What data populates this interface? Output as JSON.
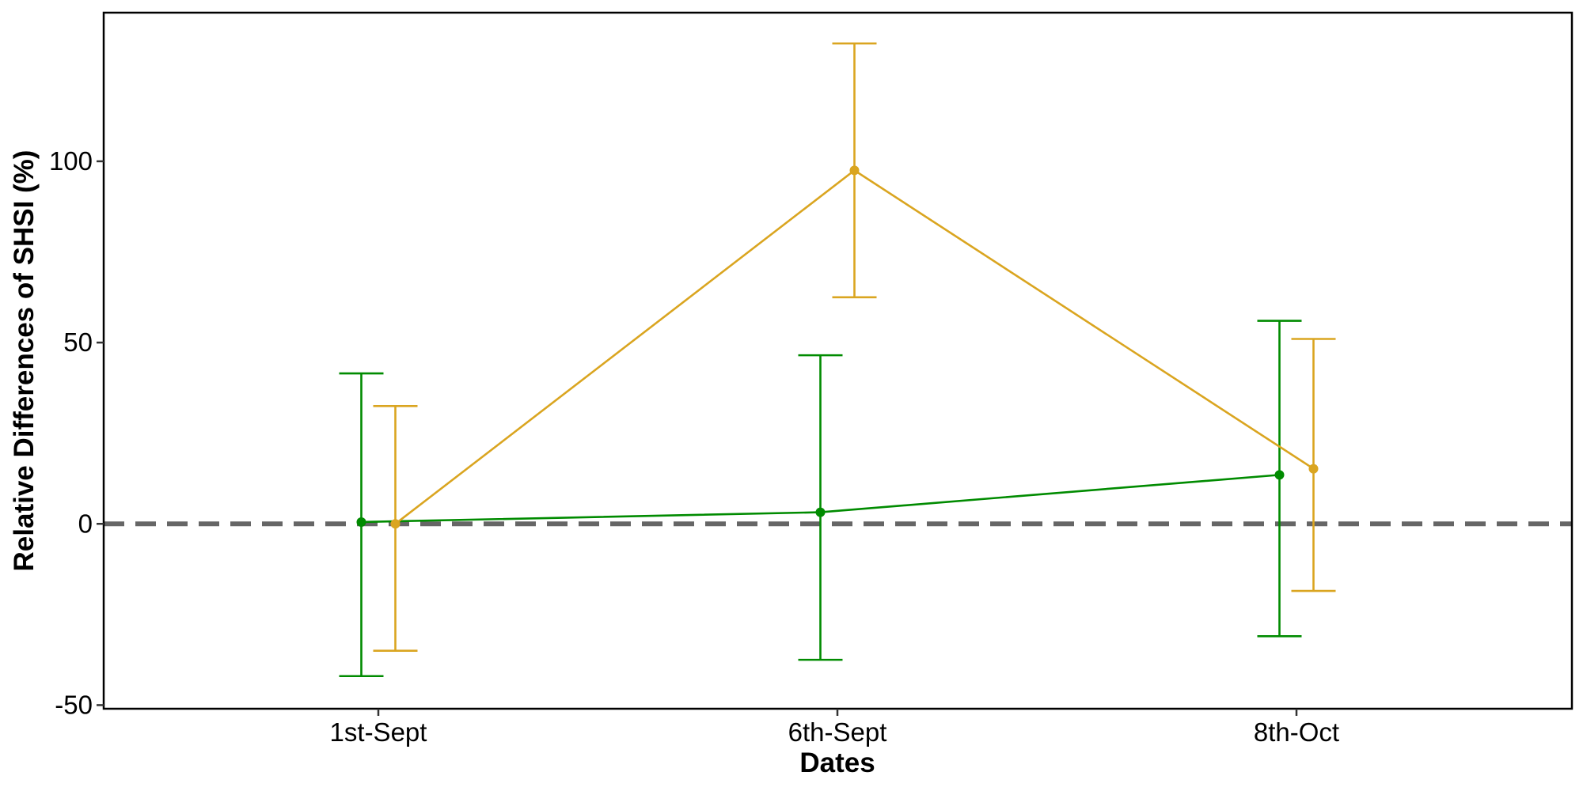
{
  "chart_data": {
    "type": "line",
    "xlabel": "Dates",
    "ylabel": "Relative Differences of SHSI (%)",
    "categories": [
      "1st-Sept",
      "6th-Sept",
      "8th-Oct"
    ],
    "ylim": [
      -51,
      141
    ],
    "yticks": [
      -50,
      0,
      50,
      100
    ],
    "grid": false,
    "legend": "none",
    "reference_line": {
      "y": 0,
      "style": "dashed",
      "color": "#666666"
    },
    "series": [
      {
        "color": "#008B00",
        "values": [
          0.5,
          3.2,
          13.5
        ],
        "error_low": [
          -42,
          -37.5,
          -31
        ],
        "error_high": [
          41.5,
          46.5,
          56
        ]
      },
      {
        "color": "#DAA520",
        "values": [
          0,
          97.5,
          15.2
        ],
        "error_low": [
          -35,
          62.5,
          -18.5
        ],
        "error_high": [
          32.5,
          132.5,
          51
        ]
      }
    ]
  }
}
